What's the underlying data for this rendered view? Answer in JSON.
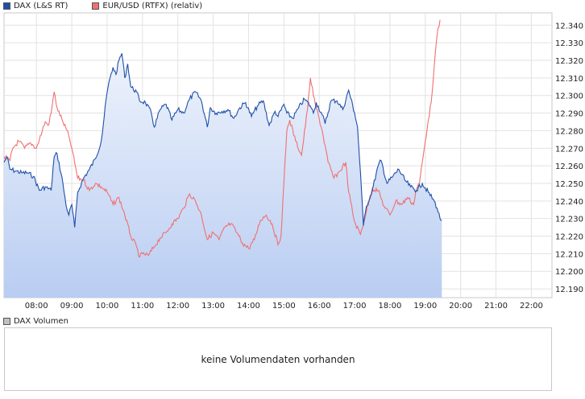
{
  "legend": {
    "dax": {
      "label": "DAX (L&S RT)",
      "color": "#1f4fa8"
    },
    "eurusd": {
      "label": "EUR/USD (RTFX) (relativ)",
      "color": "#f07070"
    }
  },
  "volume": {
    "legend_label": "DAX Volumen",
    "message": "keine Volumendaten vorhanden"
  },
  "chart_data": {
    "type": "line",
    "x_ticks": [
      "08:00",
      "09:00",
      "10:00",
      "11:00",
      "12:00",
      "13:00",
      "14:00",
      "15:00",
      "16:00",
      "17:00",
      "18:00",
      "19:00",
      "20:00",
      "21:00",
      "22:00"
    ],
    "y_ticks": [
      "12.190",
      "12.200",
      "12.210",
      "12.220",
      "12.230",
      "12.240",
      "12.250",
      "12.260",
      "12.270",
      "12.280",
      "12.290",
      "12.300",
      "12.310",
      "12.320",
      "12.330",
      "12.340"
    ],
    "x_range": [
      "07:05",
      "22:35"
    ],
    "ylim": [
      12185,
      12347
    ],
    "grid": true,
    "series": [
      {
        "name": "DAX (L&S RT)",
        "color": "#1f4fa8",
        "fill": "area-gradient",
        "points": [
          [
            "07:05",
            12262
          ],
          [
            "07:10",
            12265
          ],
          [
            "07:15",
            12258
          ],
          [
            "07:25",
            12257
          ],
          [
            "07:35",
            12256
          ],
          [
            "07:45",
            12256
          ],
          [
            "07:55",
            12254
          ],
          [
            "08:05",
            12246
          ],
          [
            "08:15",
            12248
          ],
          [
            "08:25",
            12246
          ],
          [
            "08:30",
            12265
          ],
          [
            "08:35",
            12267
          ],
          [
            "08:45",
            12250
          ],
          [
            "08:50",
            12238
          ],
          [
            "08:55",
            12232
          ],
          [
            "09:00",
            12238
          ],
          [
            "09:05",
            12225
          ],
          [
            "09:10",
            12245
          ],
          [
            "09:20",
            12253
          ],
          [
            "09:30",
            12258
          ],
          [
            "09:40",
            12264
          ],
          [
            "09:50",
            12274
          ],
          [
            "10:00",
            12302
          ],
          [
            "10:05",
            12310
          ],
          [
            "10:10",
            12316
          ],
          [
            "10:15",
            12312
          ],
          [
            "10:20",
            12320
          ],
          [
            "10:25",
            12324
          ],
          [
            "10:30",
            12310
          ],
          [
            "10:35",
            12318
          ],
          [
            "10:40",
            12305
          ],
          [
            "10:50",
            12302
          ],
          [
            "10:55",
            12297
          ],
          [
            "11:05",
            12296
          ],
          [
            "11:15",
            12290
          ],
          [
            "11:20",
            12282
          ],
          [
            "11:30",
            12292
          ],
          [
            "11:40",
            12295
          ],
          [
            "11:50",
            12286
          ],
          [
            "12:00",
            12292
          ],
          [
            "12:10",
            12290
          ],
          [
            "12:20",
            12298
          ],
          [
            "12:30",
            12302
          ],
          [
            "12:40",
            12297
          ],
          [
            "12:50",
            12282
          ],
          [
            "12:55",
            12293
          ],
          [
            "13:05",
            12290
          ],
          [
            "13:15",
            12291
          ],
          [
            "13:25",
            12292
          ],
          [
            "13:35",
            12287
          ],
          [
            "13:45",
            12293
          ],
          [
            "13:55",
            12296
          ],
          [
            "14:05",
            12288
          ],
          [
            "14:15",
            12294
          ],
          [
            "14:25",
            12297
          ],
          [
            "14:35",
            12283
          ],
          [
            "14:45",
            12291
          ],
          [
            "14:50",
            12288
          ],
          [
            "15:00",
            12295
          ],
          [
            "15:05",
            12290
          ],
          [
            "15:15",
            12287
          ],
          [
            "15:25",
            12293
          ],
          [
            "15:35",
            12298
          ],
          [
            "15:45",
            12294
          ],
          [
            "15:50",
            12290
          ],
          [
            "15:55",
            12296
          ],
          [
            "16:05",
            12289
          ],
          [
            "16:10",
            12284
          ],
          [
            "16:20",
            12297
          ],
          [
            "16:30",
            12297
          ],
          [
            "16:40",
            12292
          ],
          [
            "16:50",
            12303
          ],
          [
            "17:00",
            12290
          ],
          [
            "17:05",
            12282
          ],
          [
            "17:10",
            12256
          ],
          [
            "17:15",
            12226
          ],
          [
            "17:20",
            12237
          ],
          [
            "17:30",
            12246
          ],
          [
            "17:40",
            12260
          ],
          [
            "17:45",
            12263
          ],
          [
            "17:55",
            12250
          ],
          [
            "18:05",
            12254
          ],
          [
            "18:15",
            12258
          ],
          [
            "18:25",
            12252
          ],
          [
            "18:35",
            12248
          ],
          [
            "18:45",
            12246
          ],
          [
            "18:55",
            12250
          ],
          [
            "19:05",
            12245
          ],
          [
            "19:15",
            12240
          ],
          [
            "19:20",
            12236
          ],
          [
            "19:25",
            12230
          ],
          [
            "19:28",
            12229
          ]
        ]
      },
      {
        "name": "EUR/USD (RTFX) (relativ)",
        "color": "#f07070",
        "fill": "none",
        "points": [
          [
            "07:05",
            12265
          ],
          [
            "07:15",
            12263
          ],
          [
            "07:20",
            12270
          ],
          [
            "07:30",
            12274
          ],
          [
            "07:40",
            12270
          ],
          [
            "07:50",
            12273
          ],
          [
            "08:00",
            12270
          ],
          [
            "08:10",
            12280
          ],
          [
            "08:15",
            12285
          ],
          [
            "08:20",
            12283
          ],
          [
            "08:25",
            12290
          ],
          [
            "08:30",
            12302
          ],
          [
            "08:35",
            12293
          ],
          [
            "08:45",
            12285
          ],
          [
            "08:55",
            12277
          ],
          [
            "09:00",
            12270
          ],
          [
            "09:10",
            12253
          ],
          [
            "09:20",
            12252
          ],
          [
            "09:30",
            12246
          ],
          [
            "09:40",
            12250
          ],
          [
            "09:50",
            12248
          ],
          [
            "10:00",
            12245
          ],
          [
            "10:10",
            12238
          ],
          [
            "10:20",
            12242
          ],
          [
            "10:30",
            12232
          ],
          [
            "10:40",
            12220
          ],
          [
            "10:50",
            12214
          ],
          [
            "10:55",
            12208
          ],
          [
            "11:00",
            12210
          ],
          [
            "11:10",
            12209
          ],
          [
            "11:20",
            12214
          ],
          [
            "11:30",
            12219
          ],
          [
            "11:40",
            12222
          ],
          [
            "11:50",
            12227
          ],
          [
            "12:00",
            12230
          ],
          [
            "12:10",
            12236
          ],
          [
            "12:20",
            12244
          ],
          [
            "12:30",
            12240
          ],
          [
            "12:40",
            12232
          ],
          [
            "12:50",
            12218
          ],
          [
            "13:00",
            12222
          ],
          [
            "13:10",
            12218
          ],
          [
            "13:20",
            12225
          ],
          [
            "13:30",
            12227
          ],
          [
            "13:40",
            12222
          ],
          [
            "13:50",
            12216
          ],
          [
            "14:00",
            12213
          ],
          [
            "14:10",
            12218
          ],
          [
            "14:20",
            12229
          ],
          [
            "14:30",
            12232
          ],
          [
            "14:40",
            12227
          ],
          [
            "14:50",
            12215
          ],
          [
            "14:55",
            12220
          ],
          [
            "15:00",
            12250
          ],
          [
            "15:05",
            12280
          ],
          [
            "15:10",
            12286
          ],
          [
            "15:20",
            12274
          ],
          [
            "15:30",
            12266
          ],
          [
            "15:40",
            12292
          ],
          [
            "15:45",
            12310
          ],
          [
            "15:50",
            12300
          ],
          [
            "15:55",
            12293
          ],
          [
            "16:05",
            12280
          ],
          [
            "16:15",
            12262
          ],
          [
            "16:25",
            12253
          ],
          [
            "16:35",
            12257
          ],
          [
            "16:45",
            12262
          ],
          [
            "16:50",
            12245
          ],
          [
            "17:00",
            12228
          ],
          [
            "17:10",
            12221
          ],
          [
            "17:20",
            12234
          ],
          [
            "17:30",
            12247
          ],
          [
            "17:40",
            12246
          ],
          [
            "17:50",
            12237
          ],
          [
            "18:00",
            12232
          ],
          [
            "18:10",
            12240
          ],
          [
            "18:20",
            12238
          ],
          [
            "18:30",
            12242
          ],
          [
            "18:40",
            12238
          ],
          [
            "18:45",
            12247
          ],
          [
            "18:50",
            12250
          ],
          [
            "19:00",
            12274
          ],
          [
            "19:05",
            12286
          ],
          [
            "19:10",
            12296
          ],
          [
            "19:15",
            12316
          ],
          [
            "19:20",
            12334
          ],
          [
            "19:25",
            12343
          ]
        ]
      }
    ]
  }
}
